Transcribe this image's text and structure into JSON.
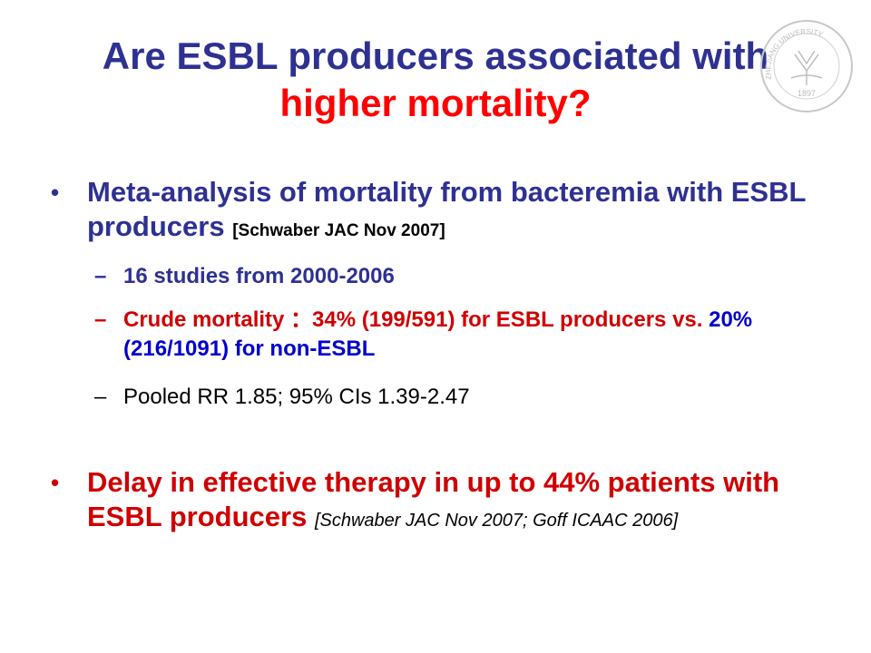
{
  "title": {
    "line1": "Are ESBL producers associated with",
    "line2": "higher mortality?"
  },
  "logo": {
    "year": "1897",
    "name": "ZHEJIANG UNIVERSITY",
    "icon": "zhejiang-university-seal"
  },
  "bullets": [
    {
      "marker": "•",
      "text_main": "Meta-analysis of mortality from bacteremia with ESBL producers",
      "reference": "[Schwaber JAC Nov 2007]",
      "subitems": [
        {
          "marker": "–",
          "text": "16 studies from 2000-2006"
        },
        {
          "marker": "–",
          "text_red": "Crude mortality ：34% (199/591) for ESBL producers vs.",
          "text_blue": "20% (216/1091) for non-ESBL"
        },
        {
          "marker": "–",
          "text": "Pooled RR 1.85; 95% CIs 1.39-2.47"
        }
      ]
    },
    {
      "marker": "•",
      "text_main": "Delay in effective therapy in up to 44% patients with ESBL producers",
      "reference": "[Schwaber JAC Nov 2007; Goff ICAAC 2006]"
    }
  ],
  "colors": {
    "title": "#2e3192",
    "accent": "#ff0000",
    "bullet_text": "#2e3192",
    "red_text": "#d00000",
    "blue_text": "#0000cc"
  }
}
